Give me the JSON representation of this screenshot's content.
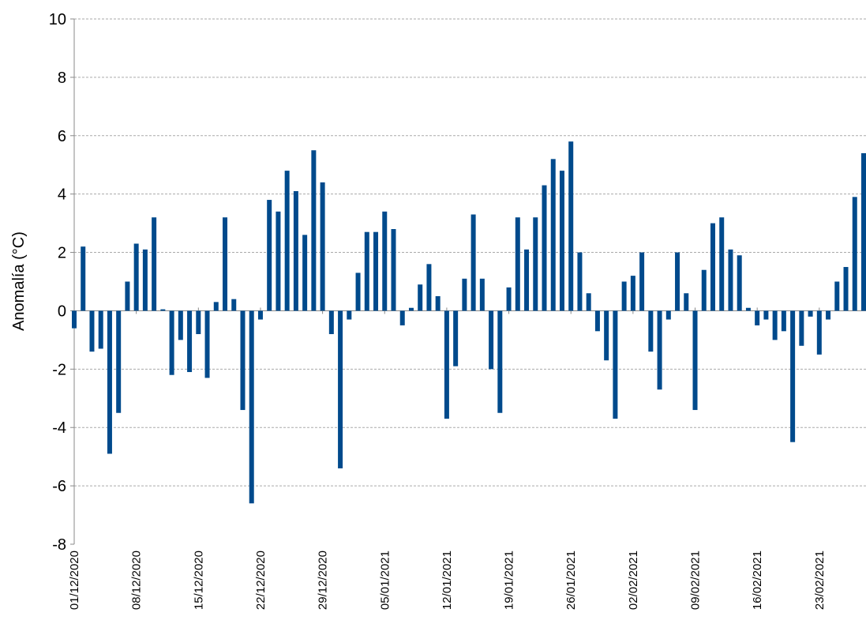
{
  "chart_data": {
    "type": "bar",
    "y_label": "Anomalía (°C)",
    "categories": [
      "01/12/2020",
      null,
      null,
      null,
      null,
      null,
      null,
      "08/12/2020",
      null,
      null,
      null,
      null,
      null,
      null,
      "15/12/2020",
      null,
      null,
      null,
      null,
      null,
      null,
      "22/12/2020",
      null,
      null,
      null,
      null,
      null,
      null,
      "29/12/2020",
      null,
      null,
      null,
      null,
      null,
      null,
      "05/01/2021",
      null,
      null,
      null,
      null,
      null,
      null,
      "12/01/2021",
      null,
      null,
      null,
      null,
      null,
      null,
      "19/01/2021",
      null,
      null,
      null,
      null,
      null,
      null,
      "26/01/2021",
      null,
      null,
      null,
      null,
      null,
      null,
      "02/02/2021",
      null,
      null,
      null,
      null,
      null,
      null,
      "09/02/2021",
      null,
      null,
      null,
      null,
      null,
      null,
      "16/02/2021",
      null,
      null,
      null,
      null,
      null,
      null,
      "23/02/2021",
      null,
      null,
      null,
      null,
      null
    ],
    "values": [
      -0.6,
      2.2,
      -1.4,
      -1.3,
      -4.9,
      -3.5,
      1.0,
      2.3,
      2.1,
      3.2,
      0.05,
      -2.2,
      -1.0,
      -2.1,
      -0.8,
      -2.3,
      0.3,
      3.2,
      0.4,
      -3.4,
      -6.6,
      -0.3,
      3.8,
      3.4,
      4.8,
      4.1,
      2.6,
      5.5,
      4.4,
      -0.8,
      -5.4,
      -0.3,
      1.3,
      2.7,
      2.7,
      3.4,
      2.8,
      -0.5,
      0.1,
      0.9,
      1.6,
      0.5,
      -3.7,
      -1.9,
      1.1,
      3.3,
      1.1,
      -2.0,
      -3.5,
      0.8,
      3.2,
      2.1,
      3.2,
      4.3,
      5.2,
      4.8,
      5.8,
      2.0,
      0.6,
      -0.7,
      -1.7,
      -3.7,
      1.0,
      1.2,
      2.0,
      -1.4,
      -2.7,
      -0.3,
      2.0,
      0.6,
      -3.4,
      1.4,
      3.0,
      3.2,
      2.1,
      1.9,
      0.1,
      -0.5,
      -0.3,
      -1.0,
      -0.7,
      -4.5,
      -1.2,
      -0.2,
      -1.5,
      -0.3,
      1.0,
      1.5,
      3.9,
      5.4
    ],
    "color": "#004a8c",
    "ylim": [
      -8,
      10
    ],
    "yticks": [
      -8,
      -6,
      -4,
      -2,
      0,
      2,
      4,
      6,
      8,
      10
    ],
    "grid": true
  }
}
